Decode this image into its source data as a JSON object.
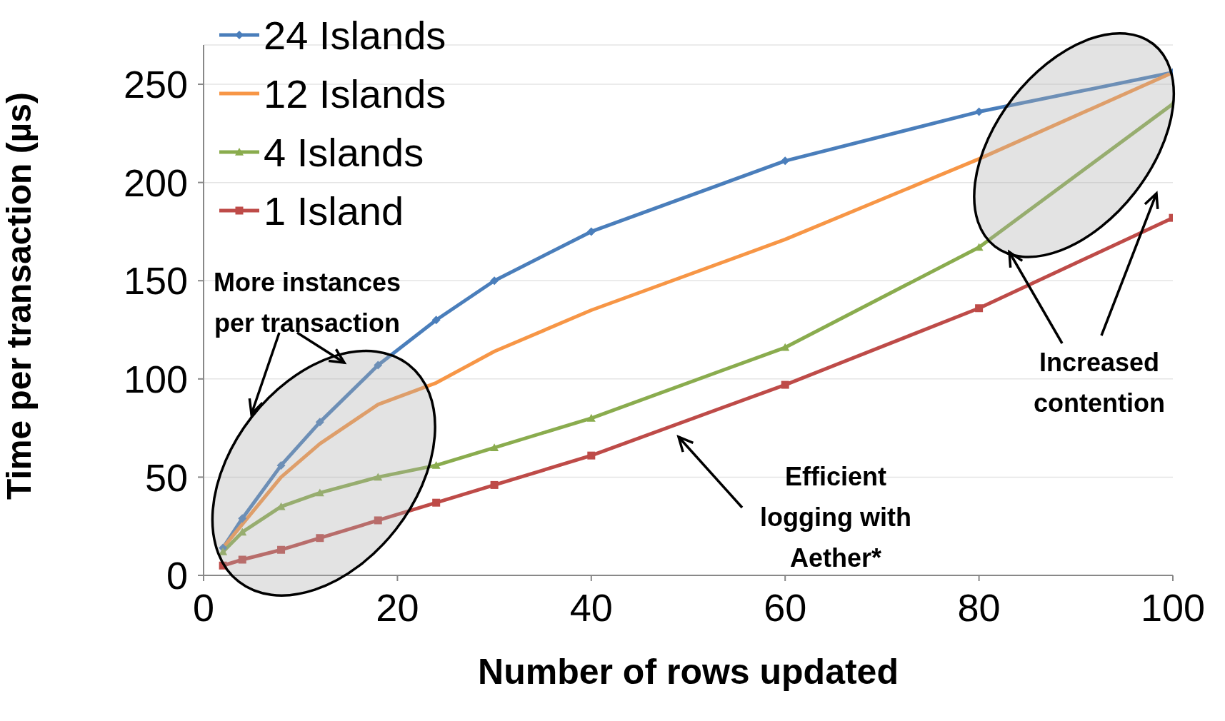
{
  "chart_data": {
    "type": "line",
    "xlabel": "Number of rows updated",
    "ylabel": "Time per transaction (µs)",
    "x": [
      2,
      4,
      8,
      12,
      18,
      24,
      30,
      40,
      60,
      80,
      100
    ],
    "series": [
      {
        "name": "24 Islands",
        "color": "#4a7ebb",
        "marker": "diamond",
        "values": [
          14,
          29,
          56,
          78,
          107,
          130,
          150,
          175,
          211,
          236,
          256
        ]
      },
      {
        "name": "12 Islands",
        "color": "#f79646",
        "marker": "none",
        "values": [
          14,
          26,
          50,
          67,
          87,
          98,
          114,
          135,
          171,
          212,
          256
        ]
      },
      {
        "name": "4 Islands",
        "color": "#8aac4e",
        "marker": "triangle",
        "values": [
          12,
          22,
          35,
          42,
          50,
          56,
          65,
          80,
          116,
          167,
          240
        ]
      },
      {
        "name": "1 Island",
        "color": "#be4b48",
        "marker": "square",
        "values": [
          5,
          8,
          13,
          19,
          28,
          37,
          46,
          61,
          97,
          136,
          182
        ]
      }
    ],
    "xlim": [
      0,
      100
    ],
    "xticks": [
      0,
      20,
      40,
      60,
      80,
      100
    ],
    "ylim": [
      0,
      270
    ],
    "yticks": [
      0,
      50,
      100,
      150,
      200,
      250
    ],
    "grid": "y",
    "legend": "top left",
    "line_style": "solid",
    "annotations": [
      "More instances\nper transaction",
      "Increased\ncontention",
      "Efficient\nlogging with\nAether*"
    ]
  }
}
